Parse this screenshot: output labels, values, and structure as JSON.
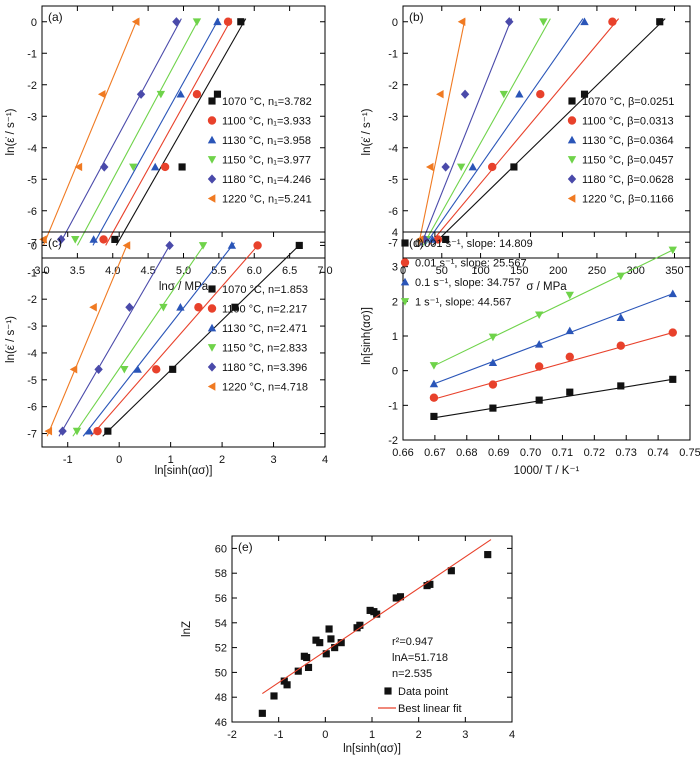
{
  "chart_data": [
    {
      "panel": "(a)",
      "type": "scatter",
      "xlabel": "lnσ / MPa",
      "ylabel": "ln(ε̇ / s⁻¹)",
      "xlim": [
        3.0,
        7.0
      ],
      "ylim": [
        -7.5,
        0.5
      ],
      "xticks": [
        3.0,
        3.5,
        4.0,
        4.5,
        5.0,
        5.5,
        6.0,
        6.5,
        7.0
      ],
      "xtick_labels": [
        "3.0",
        "3.5",
        "4.0",
        "4.5",
        "5.0",
        "5.5",
        "6.0",
        "6.5",
        "7.0"
      ],
      "yticks": [
        0,
        -1,
        -2,
        -3,
        -4,
        -5,
        -6,
        -7
      ],
      "ytick_labels": [
        "0",
        "-1",
        "-2",
        "-3",
        "-4",
        "-5",
        "-6",
        "-7"
      ],
      "legend_position": "bottom-right",
      "y_levels": [
        -6.91,
        -4.61,
        -2.3,
        0.0
      ],
      "series": [
        {
          "name": "1070 °C, n₁=3.782",
          "color": "#111111",
          "marker": "square",
          "x": [
            4.03,
            4.98,
            5.48,
            5.81
          ],
          "fit": [
            [
              4.05,
              -7.1
            ],
            [
              5.88,
              0.1
            ]
          ]
        },
        {
          "name": "1100 °C, n₁=3.933",
          "color": "#e8412b",
          "marker": "circle",
          "x": [
            3.87,
            4.74,
            5.19,
            5.63
          ],
          "fit": [
            [
              3.9,
              -7.1
            ],
            [
              5.68,
              0.1
            ]
          ]
        },
        {
          "name": "1130 °C, n₁=3.958",
          "color": "#2a55b8",
          "marker": "triangle-up",
          "x": [
            3.73,
            4.6,
            4.96,
            5.48
          ],
          "fit": [
            [
              3.72,
              -7.1
            ],
            [
              5.5,
              0.1
            ]
          ]
        },
        {
          "name": "1150 °C, n₁=3.977",
          "color": "#6fd34a",
          "marker": "triangle-down",
          "x": [
            3.47,
            4.29,
            4.68,
            5.19
          ],
          "fit": [
            [
              3.5,
              -7.1
            ],
            [
              5.22,
              0.1
            ]
          ]
        },
        {
          "name": "1180 °C, n₁=4.246",
          "color": "#4a4aaa",
          "marker": "diamond",
          "x": [
            3.27,
            3.88,
            4.4,
            4.9
          ],
          "fit": [
            [
              3.24,
              -7.1
            ],
            [
              4.97,
              0.1
            ]
          ]
        },
        {
          "name": "1220 °C, n₁=5.241",
          "color": "#f07a22",
          "marker": "triangle-left",
          "x": [
            3.02,
            3.52,
            3.85,
            4.33
          ],
          "fit": [
            [
              3.02,
              -7.1
            ],
            [
              4.35,
              0.1
            ]
          ]
        }
      ]
    },
    {
      "panel": "(b)",
      "type": "scatter",
      "xlabel": "σ / MPa",
      "ylabel": "ln(ε̇ / s⁻¹)",
      "xlim": [
        0,
        370
      ],
      "ylim": [
        -7.5,
        0.5
      ],
      "xticks": [
        0,
        50,
        100,
        150,
        200,
        250,
        300,
        350
      ],
      "xtick_labels": [
        "0",
        "50",
        "100",
        "150",
        "200",
        "250",
        "300",
        "350"
      ],
      "yticks": [
        0,
        -1,
        -2,
        -3,
        -4,
        -5,
        -6,
        -7
      ],
      "ytick_labels": [
        "0",
        "-1",
        "-2",
        "-3",
        "-4",
        "-5",
        "-6",
        "-7"
      ],
      "legend_position": "bottom-right",
      "y_levels": [
        -6.91,
        -4.61,
        -2.3,
        0.0
      ],
      "series": [
        {
          "name": "1070 °C, β=0.0251",
          "color": "#111111",
          "marker": "square",
          "x": [
            55,
            143,
            234,
            331
          ],
          "fit": [
            [
              38,
              -7.1
            ],
            [
              338,
              0.1
            ]
          ]
        },
        {
          "name": "1100 °C, β=0.0313",
          "color": "#e8412b",
          "marker": "circle",
          "x": [
            45,
            115,
            177,
            270
          ],
          "fit": [
            [
              33,
              -7.1
            ],
            [
              278,
              0.1
            ]
          ]
        },
        {
          "name": "1130 °C, β=0.0364",
          "color": "#2a55b8",
          "marker": "triangle-up",
          "x": [
            38,
            90,
            150,
            234
          ],
          "fit": [
            [
              28,
              -7.1
            ],
            [
              232,
              0.1
            ]
          ]
        },
        {
          "name": "1150 °C, β=0.0457",
          "color": "#6fd34a",
          "marker": "triangle-down",
          "x": [
            30,
            75,
            130,
            181
          ],
          "fit": [
            [
              26,
              -7.1
            ],
            [
              190,
              0.1
            ]
          ]
        },
        {
          "name": "1180 °C, β=0.0628",
          "color": "#4a4aaa",
          "marker": "diamond",
          "x": [
            28,
            55,
            80,
            137
          ],
          "fit": [
            [
              23,
              -7.1
            ],
            [
              140,
              0.1
            ]
          ]
        },
        {
          "name": "1220 °C, β=0.1166",
          "color": "#f07a22",
          "marker": "triangle-left",
          "x": [
            22,
            35,
            48,
            76
          ],
          "fit": [
            [
              20,
              -7.1
            ],
            [
              80,
              0.1
            ]
          ]
        }
      ]
    },
    {
      "panel": "(c)",
      "type": "scatter",
      "xlabel": "ln[sinh(ασ)]",
      "ylabel": "ln(ε̇ / s⁻¹)",
      "xlim": [
        -1.5,
        4.0
      ],
      "ylim": [
        -7.5,
        0.5
      ],
      "xticks": [
        -1,
        0,
        1,
        2,
        3,
        4
      ],
      "xtick_labels": [
        "-1",
        "0",
        "1",
        "2",
        "3",
        "4"
      ],
      "yticks": [
        0,
        -1,
        -2,
        -3,
        -4,
        -5,
        -6,
        -7
      ],
      "ytick_labels": [
        "0",
        "-1",
        "-2",
        "-3",
        "-4",
        "-5",
        "-6",
        "-7"
      ],
      "legend_position": "bottom-right",
      "y_levels": [
        -6.91,
        -4.61,
        -2.3,
        0.0
      ],
      "series": [
        {
          "name": "1070 °C, n=1.853",
          "color": "#111111",
          "marker": "square",
          "x": [
            -0.22,
            1.04,
            2.25,
            3.5
          ],
          "fit": [
            [
              -0.32,
              -7.1
            ],
            [
              3.55,
              0.1
            ]
          ]
        },
        {
          "name": "1100 °C, n=2.217",
          "color": "#e8412b",
          "marker": "circle",
          "x": [
            -0.42,
            0.72,
            1.54,
            2.69
          ],
          "fit": [
            [
              -0.55,
              -7.1
            ],
            [
              2.74,
              0.1
            ]
          ]
        },
        {
          "name": "1130 °C, n=2.471",
          "color": "#2a55b8",
          "marker": "triangle-up",
          "x": [
            -0.58,
            0.36,
            1.19,
            2.19
          ],
          "fit": [
            [
              -0.7,
              -7.1
            ],
            [
              2.24,
              0.1
            ]
          ]
        },
        {
          "name": "1150 °C, n=2.833",
          "color": "#6fd34a",
          "marker": "triangle-down",
          "x": [
            -0.82,
            0.1,
            0.86,
            1.63
          ],
          "fit": [
            [
              -0.9,
              -7.1
            ],
            [
              1.68,
              0.1
            ]
          ]
        },
        {
          "name": "1180 °C, n=3.396",
          "color": "#4a4aaa",
          "marker": "diamond",
          "x": [
            -1.1,
            -0.4,
            0.2,
            0.98
          ],
          "fit": [
            [
              -1.17,
              -7.1
            ],
            [
              1.01,
              0.1
            ]
          ]
        },
        {
          "name": "1220 °C, n=4.718",
          "color": "#f07a22",
          "marker": "triangle-left",
          "x": [
            -1.37,
            -0.88,
            -0.5,
            0.15
          ],
          "fit": [
            [
              -1.4,
              -7.1
            ],
            [
              0.17,
              0.1
            ]
          ]
        }
      ]
    },
    {
      "panel": "(d)",
      "type": "scatter",
      "xlabel": "1000/ T / K⁻¹",
      "ylabel": "ln[sinh(ασ)]",
      "xlim": [
        0.66,
        0.75
      ],
      "ylim": [
        -2,
        4
      ],
      "xticks": [
        0.66,
        0.67,
        0.68,
        0.69,
        0.7,
        0.71,
        0.72,
        0.73,
        0.74,
        0.75
      ],
      "xtick_labels": [
        "0.66",
        "0.67",
        "0.68",
        "0.69",
        "0.70",
        "0.71",
        "0.72",
        "0.73",
        "0.74",
        "0.75"
      ],
      "yticks": [
        -2,
        -1,
        0,
        1,
        2,
        3,
        4
      ],
      "ytick_labels": [
        "-2",
        "-1",
        "0",
        "1",
        "2",
        "3",
        "4"
      ],
      "legend_position": "top-left",
      "x": [
        0.6697,
        0.6882,
        0.7027,
        0.7123,
        0.7283,
        0.7446
      ],
      "series": [
        {
          "name": "0.001 s⁻¹, slope: 14.809",
          "color": "#111111",
          "marker": "square",
          "y": [
            -1.32,
            -1.08,
            -0.85,
            -0.62,
            -0.44,
            -0.25
          ],
          "fit": [
            [
              0.6697,
              -1.36
            ],
            [
              0.7446,
              -0.25
            ]
          ]
        },
        {
          "name": "0.01 s⁻¹, slope: 25.567",
          "color": "#e8412b",
          "marker": "circle",
          "y": [
            -0.78,
            -0.4,
            0.12,
            0.4,
            0.72,
            1.1
          ],
          "fit": [
            [
              0.6697,
              -0.82
            ],
            [
              0.7446,
              1.1
            ]
          ]
        },
        {
          "name": "0.1 s⁻¹, slope: 34.757",
          "color": "#2a55b8",
          "marker": "triangle-up",
          "y": [
            -0.38,
            0.23,
            0.76,
            1.15,
            1.53,
            2.22
          ],
          "fit": [
            [
              0.6697,
              -0.38
            ],
            [
              0.7446,
              2.22
            ]
          ]
        },
        {
          "name": "1 s⁻¹, slope: 44.567",
          "color": "#6fd34a",
          "marker": "triangle-down",
          "y": [
            0.15,
            0.97,
            1.61,
            2.18,
            2.73,
            3.48
          ],
          "fit": [
            [
              0.6697,
              0.14
            ],
            [
              0.7446,
              3.48
            ]
          ]
        }
      ]
    },
    {
      "panel": "(e)",
      "type": "scatter",
      "xlabel": "ln[sinh(ασ)]",
      "ylabel": "lnZ",
      "xlim": [
        -2,
        4
      ],
      "ylim": [
        46,
        61
      ],
      "xticks": [
        -2,
        -1,
        0,
        1,
        2,
        3,
        4
      ],
      "xtick_labels": [
        "-2",
        "-1",
        "0",
        "1",
        "2",
        "3",
        "4"
      ],
      "yticks": [
        46,
        48,
        50,
        52,
        54,
        56,
        58,
        60
      ],
      "ytick_labels": [
        "46",
        "48",
        "50",
        "52",
        "54",
        "56",
        "58",
        "60"
      ],
      "legend_position": "bottom-right",
      "annotations": [
        "r²=0.947",
        "lnA=51.718",
        "n=2.535"
      ],
      "series": [
        {
          "name": "Data point",
          "color": "#111111",
          "marker": "square",
          "x": [
            -1.35,
            -1.1,
            -0.88,
            -0.82,
            -0.58,
            -0.45,
            -0.4,
            -0.36,
            -0.2,
            -0.12,
            0.02,
            0.08,
            0.12,
            0.2,
            0.34,
            0.68,
            0.74,
            0.96,
            1.04,
            1.1,
            1.52,
            1.61,
            2.18,
            2.24,
            2.7,
            3.48
          ],
          "y": [
            46.7,
            48.1,
            49.3,
            49.0,
            50.1,
            51.3,
            51.2,
            50.4,
            52.6,
            52.4,
            51.5,
            53.5,
            52.7,
            52.0,
            52.4,
            53.6,
            53.8,
            55.0,
            54.9,
            54.7,
            56.0,
            56.1,
            57.0,
            57.1,
            58.2,
            59.5
          ]
        },
        {
          "name": "Best linear fit",
          "color": "#e8412b",
          "line": true,
          "fit": [
            [
              -1.35,
              48.29
            ],
            [
              3.55,
              60.71
            ]
          ]
        }
      ]
    }
  ]
}
